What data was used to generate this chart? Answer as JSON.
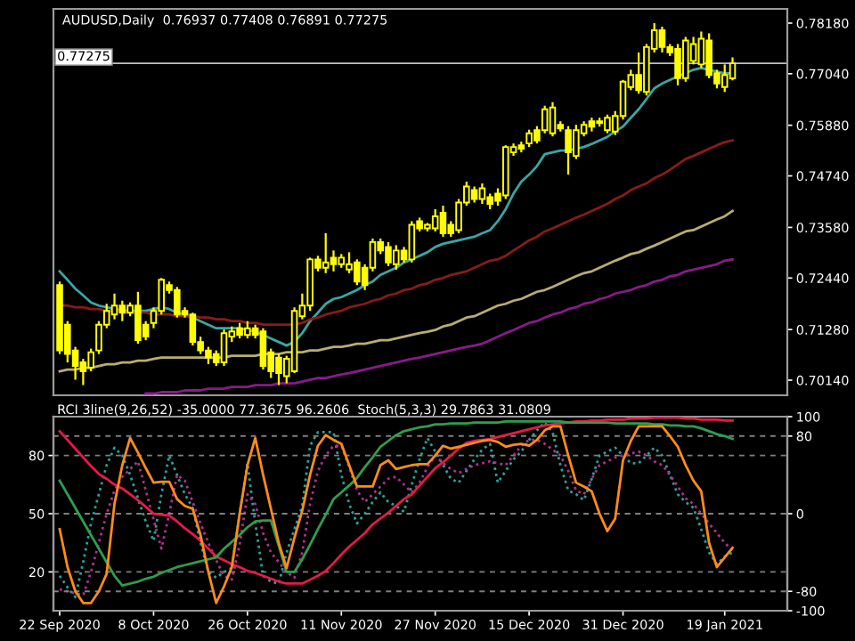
{
  "chart_data": [
    {
      "type": "candlestick",
      "title": "AUDUSD,Daily  0.76937 0.77408 0.76891 0.77275",
      "color": "#ffff00",
      "tick_labels": "y",
      "ohlc": [
        [
          0.7228,
          0.7236,
          0.7073,
          0.7081
        ],
        [
          0.7139,
          0.7147,
          0.7054,
          0.7073
        ],
        [
          0.7081,
          0.7089,
          0.7015,
          0.7046
        ],
        [
          0.7054,
          0.7062,
          0.7003,
          0.7034
        ],
        [
          0.7042,
          0.7085,
          0.7034,
          0.7077
        ],
        [
          0.7081,
          0.7147,
          0.7073,
          0.7139
        ],
        [
          0.7139,
          0.7186,
          0.7131,
          0.717
        ],
        [
          0.7162,
          0.7209,
          0.7151,
          0.7182
        ],
        [
          0.7182,
          0.7193,
          0.7147,
          0.7166
        ],
        [
          0.7166,
          0.7189,
          0.7158,
          0.7182
        ],
        [
          0.7182,
          0.7213,
          0.7096,
          0.7104
        ],
        [
          0.7139,
          0.7147,
          0.7104,
          0.7112
        ],
        [
          0.7143,
          0.7178,
          0.7131,
          0.717
        ],
        [
          0.717,
          0.7244,
          0.7162,
          0.724
        ],
        [
          0.7228,
          0.7236,
          0.7209,
          0.7217
        ],
        [
          0.7217,
          0.7224,
          0.7155,
          0.7162
        ],
        [
          0.717,
          0.7178,
          0.7155,
          0.7162
        ],
        [
          0.7162,
          0.7166,
          0.7092,
          0.71
        ],
        [
          0.71,
          0.7112,
          0.7073,
          0.7081
        ],
        [
          0.7081,
          0.7089,
          0.705,
          0.7065
        ],
        [
          0.7073,
          0.7081,
          0.7046,
          0.7054
        ],
        [
          0.7054,
          0.7128,
          0.7046,
          0.712
        ],
        [
          0.7112,
          0.7135,
          0.71,
          0.7124
        ],
        [
          0.7131,
          0.7143,
          0.7108,
          0.7116
        ],
        [
          0.7116,
          0.7147,
          0.7108,
          0.7131
        ],
        [
          0.7131,
          0.7139,
          0.7108,
          0.7116
        ],
        [
          0.7124,
          0.7131,
          0.7038,
          0.7046
        ],
        [
          0.7077,
          0.7085,
          0.7019,
          0.7034
        ],
        [
          0.7065,
          0.7073,
          0.7003,
          0.703
        ],
        [
          0.7023,
          0.7069,
          0.7007,
          0.7062
        ],
        [
          0.7034,
          0.7178,
          0.703,
          0.717
        ],
        [
          0.7158,
          0.7209,
          0.7151,
          0.7182
        ],
        [
          0.7182,
          0.729,
          0.717,
          0.7286
        ],
        [
          0.7286,
          0.7294,
          0.7259,
          0.7267
        ],
        [
          0.7267,
          0.7345,
          0.7255,
          0.7279
        ],
        [
          0.729,
          0.7306,
          0.7259,
          0.7275
        ],
        [
          0.7275,
          0.7298,
          0.7267,
          0.729
        ],
        [
          0.7263,
          0.7302,
          0.7255,
          0.7275
        ],
        [
          0.7279,
          0.7286,
          0.7228,
          0.7236
        ],
        [
          0.7267,
          0.7275,
          0.7217,
          0.7228
        ],
        [
          0.7267,
          0.7333,
          0.7259,
          0.7325
        ],
        [
          0.7325,
          0.7333,
          0.7298,
          0.7306
        ],
        [
          0.7314,
          0.7325,
          0.7271,
          0.7279
        ],
        [
          0.7275,
          0.7318,
          0.7263,
          0.7306
        ],
        [
          0.7306,
          0.7314,
          0.7279,
          0.7286
        ],
        [
          0.7286,
          0.7372,
          0.7279,
          0.7364
        ],
        [
          0.7372,
          0.738,
          0.7349,
          0.7356
        ],
        [
          0.7356,
          0.7368,
          0.7349,
          0.7364
        ],
        [
          0.7356,
          0.7399,
          0.7349,
          0.7383
        ],
        [
          0.7391,
          0.7407,
          0.7337,
          0.7345
        ],
        [
          0.7364,
          0.7372,
          0.7337,
          0.7345
        ],
        [
          0.7352,
          0.7422,
          0.7345,
          0.7414
        ],
        [
          0.7414,
          0.7461,
          0.7407,
          0.745
        ],
        [
          0.7442,
          0.745,
          0.7414,
          0.7422
        ],
        [
          0.7422,
          0.7457,
          0.7411,
          0.7446
        ],
        [
          0.7426,
          0.7434,
          0.7399,
          0.7411
        ],
        [
          0.7434,
          0.7446,
          0.7407,
          0.7418
        ],
        [
          0.743,
          0.7543,
          0.7422,
          0.7539
        ],
        [
          0.7527,
          0.7547,
          0.7519,
          0.7539
        ],
        [
          0.7543,
          0.7551,
          0.7527,
          0.7535
        ],
        [
          0.7547,
          0.7578,
          0.7539,
          0.757
        ],
        [
          0.7577,
          0.7586,
          0.7547,
          0.7554
        ],
        [
          0.7577,
          0.7632,
          0.757,
          0.7624
        ],
        [
          0.757,
          0.764,
          0.7563,
          0.7628
        ],
        [
          0.7589,
          0.7597,
          0.7574,
          0.7581
        ],
        [
          0.7577,
          0.7586,
          0.7477,
          0.7527
        ],
        [
          0.7519,
          0.7589,
          0.7512,
          0.7577
        ],
        [
          0.757,
          0.7597,
          0.7563,
          0.7589
        ],
        [
          0.7597,
          0.7605,
          0.7574,
          0.7585
        ],
        [
          0.7593,
          0.7605,
          0.7585,
          0.7597
        ],
        [
          0.7577,
          0.7612,
          0.757,
          0.7605
        ],
        [
          0.7574,
          0.762,
          0.7566,
          0.7609
        ],
        [
          0.7609,
          0.769,
          0.7601,
          0.7686
        ],
        [
          0.7674,
          0.7713,
          0.7667,
          0.7701
        ],
        [
          0.7701,
          0.7752,
          0.7659,
          0.7667
        ],
        [
          0.7663,
          0.7771,
          0.7655,
          0.7764
        ],
        [
          0.776,
          0.7818,
          0.7752,
          0.7802
        ],
        [
          0.7802,
          0.781,
          0.7752,
          0.7764
        ],
        [
          0.7764,
          0.7771,
          0.7744,
          0.7752
        ],
        [
          0.776,
          0.7771,
          0.7678,
          0.7694
        ],
        [
          0.7694,
          0.7787,
          0.7686,
          0.7779
        ],
        [
          0.7733,
          0.7787,
          0.7725,
          0.7771
        ],
        [
          0.7725,
          0.7799,
          0.7717,
          0.7783
        ],
        [
          0.7779,
          0.7795,
          0.7694,
          0.7701
        ],
        [
          0.7705,
          0.7713,
          0.7671,
          0.7682
        ],
        [
          0.7674,
          0.7725,
          0.7663,
          0.7701
        ],
        [
          0.76937,
          0.77408,
          0.76891,
          0.77275
        ]
      ],
      "series": [
        {
          "type": "line",
          "color": "#3aa6a6",
          "values": [
            0.7259,
            0.724,
            0.722,
            0.7205,
            0.7189,
            0.7182,
            0.7178,
            0.7174,
            0.717,
            0.717,
            0.717,
            0.717,
            0.7174,
            0.7178,
            0.7174,
            0.7166,
            0.7162,
            0.7155,
            0.7147,
            0.7139,
            0.7131,
            0.7131,
            0.7131,
            0.7131,
            0.7127,
            0.7123,
            0.7116,
            0.7108,
            0.71,
            0.7092,
            0.71,
            0.712,
            0.7147,
            0.7166,
            0.7186,
            0.7197,
            0.7201,
            0.7209,
            0.7217,
            0.7228,
            0.7236,
            0.7251,
            0.7259,
            0.7267,
            0.7279,
            0.7286,
            0.7294,
            0.7302,
            0.7314,
            0.7321,
            0.7325,
            0.7329,
            0.7333,
            0.7337,
            0.7345,
            0.7352,
            0.7372,
            0.7399,
            0.7434,
            0.7461,
            0.7477,
            0.7496,
            0.7523,
            0.7527,
            0.7531,
            0.7531,
            0.7535,
            0.7539,
            0.7546,
            0.7554,
            0.7562,
            0.7574,
            0.7585,
            0.7605,
            0.7624,
            0.7647,
            0.7671,
            0.7682,
            0.769,
            0.7698,
            0.7705,
            0.7713,
            0.7717,
            0.7713,
            0.7709,
            0.7705,
            0.7705
          ]
        },
        {
          "type": "line",
          "color": "#8b1a1a",
          "values": [
            0.7182,
            0.7182,
            0.7178,
            0.7178,
            0.7174,
            0.7174,
            0.717,
            0.717,
            0.717,
            0.7166,
            0.7166,
            0.7166,
            0.7162,
            0.7162,
            0.7162,
            0.7158,
            0.7158,
            0.7158,
            0.7155,
            0.7155,
            0.7151,
            0.7151,
            0.7147,
            0.7147,
            0.7143,
            0.7143,
            0.7139,
            0.7139,
            0.7139,
            0.7139,
            0.7139,
            0.7143,
            0.7151,
            0.7155,
            0.7162,
            0.7166,
            0.717,
            0.7178,
            0.7182,
            0.7186,
            0.7193,
            0.7197,
            0.7205,
            0.7209,
            0.7217,
            0.722,
            0.7228,
            0.7232,
            0.724,
            0.7244,
            0.7251,
            0.7255,
            0.7259,
            0.7267,
            0.7275,
            0.7283,
            0.7286,
            0.7294,
            0.7306,
            0.7317,
            0.7329,
            0.7337,
            0.7349,
            0.7356,
            0.7364,
            0.7372,
            0.738,
            0.7387,
            0.7395,
            0.7403,
            0.7411,
            0.7422,
            0.743,
            0.7442,
            0.745,
            0.7457,
            0.7469,
            0.7477,
            0.7488,
            0.75,
            0.7512,
            0.7519,
            0.7527,
            0.7535,
            0.7543,
            0.755,
            0.7554
          ]
        },
        {
          "type": "line",
          "color": "#b8ad74",
          "values": [
            0.7034,
            0.7038,
            0.7038,
            0.7042,
            0.7042,
            0.7046,
            0.705,
            0.705,
            0.7054,
            0.7054,
            0.7058,
            0.7058,
            0.7062,
            0.7065,
            0.7065,
            0.7065,
            0.7065,
            0.7065,
            0.7065,
            0.7065,
            0.7065,
            0.7065,
            0.7069,
            0.7069,
            0.7069,
            0.7069,
            0.7073,
            0.7073,
            0.7073,
            0.7077,
            0.7077,
            0.7077,
            0.7081,
            0.7081,
            0.7085,
            0.7089,
            0.7089,
            0.7092,
            0.7096,
            0.7096,
            0.71,
            0.7104,
            0.7104,
            0.7108,
            0.7112,
            0.7116,
            0.712,
            0.7123,
            0.7127,
            0.7135,
            0.7139,
            0.7147,
            0.7155,
            0.7158,
            0.7166,
            0.7174,
            0.7182,
            0.7186,
            0.7193,
            0.7197,
            0.7205,
            0.7213,
            0.7217,
            0.7224,
            0.7232,
            0.724,
            0.7248,
            0.7255,
            0.7259,
            0.7267,
            0.7275,
            0.7283,
            0.729,
            0.7298,
            0.7302,
            0.731,
            0.7317,
            0.7325,
            0.7333,
            0.7341,
            0.7349,
            0.7352,
            0.736,
            0.7368,
            0.7376,
            0.7383,
            0.7395
          ]
        },
        {
          "type": "line",
          "color": "#8a1a8a",
          "values": [
            null,
            null,
            null,
            null,
            null,
            null,
            null,
            null,
            null,
            null,
            null,
            0.6984,
            0.6984,
            0.6987,
            0.6987,
            0.6987,
            0.6991,
            0.6991,
            0.6991,
            0.6995,
            0.6995,
            0.6995,
            0.6999,
            0.6999,
            0.6999,
            0.7003,
            0.7003,
            0.7003,
            0.7007,
            0.7007,
            0.7007,
            0.7011,
            0.7015,
            0.7019,
            0.7019,
            0.7023,
            0.7027,
            0.703,
            0.7034,
            0.7038,
            0.7042,
            0.7046,
            0.705,
            0.7054,
            0.7058,
            0.7062,
            0.7065,
            0.7069,
            0.7073,
            0.7077,
            0.7081,
            0.7085,
            0.7089,
            0.7092,
            0.7096,
            0.7104,
            0.7112,
            0.712,
            0.7127,
            0.7135,
            0.7143,
            0.7147,
            0.7155,
            0.7162,
            0.7166,
            0.7174,
            0.7178,
            0.7186,
            0.7189,
            0.7197,
            0.7201,
            0.7209,
            0.7213,
            0.7217,
            0.7224,
            0.7228,
            0.7236,
            0.724,
            0.7248,
            0.7251,
            0.7259,
            0.7263,
            0.7267,
            0.7271,
            0.7275,
            0.7283,
            0.7286
          ]
        }
      ],
      "ylim": [
        0.698,
        0.785
      ],
      "yticks": [
        {
          "value": 0.7014,
          "label": "0.70140"
        },
        {
          "value": 0.7128,
          "label": "0.71280"
        },
        {
          "value": 0.7244,
          "label": "0.72440"
        },
        {
          "value": 0.7358,
          "label": "0.73580"
        },
        {
          "value": 0.7474,
          "label": "0.74740"
        },
        {
          "value": 0.7588,
          "label": "0.75880"
        },
        {
          "value": 0.7704,
          "label": "0.77040"
        },
        {
          "value": 0.7818,
          "label": "0.78180"
        }
      ],
      "ref_lines": [
        {
          "axis": "y",
          "value": 0.77275,
          "label": "0.77275",
          "color": "#c0c0c0"
        }
      ]
    },
    {
      "type": "line",
      "title": "RCI 3line(9,26,52) -35.0000 77.3675 96.2606  Stoch(5,3,3) 29.7863 31.0809",
      "categories": [
        "22 Sep 2020",
        null,
        null,
        null,
        null,
        null,
        null,
        null,
        null,
        null,
        null,
        null,
        "8 Oct 2020",
        null,
        null,
        null,
        null,
        null,
        null,
        null,
        null,
        null,
        null,
        null,
        "26 Oct 2020",
        null,
        null,
        null,
        null,
        null,
        null,
        null,
        null,
        null,
        null,
        null,
        "11 Nov 2020",
        null,
        null,
        null,
        null,
        null,
        null,
        null,
        null,
        null,
        null,
        null,
        "27 Nov 2020",
        null,
        null,
        null,
        null,
        null,
        null,
        null,
        null,
        null,
        null,
        null,
        "15 Dec 2020",
        null,
        null,
        null,
        null,
        null,
        null,
        null,
        null,
        null,
        null,
        null,
        "31 Dec 2020",
        null,
        null,
        null,
        null,
        null,
        null,
        null,
        null,
        null,
        null,
        null,
        null,
        "19 Jan 2021",
        null
      ],
      "series": [
        {
          "axis": "y2",
          "color": "#e8194a",
          "line_style": "solid",
          "values": [
            85,
            76,
            67,
            58,
            49,
            41,
            36,
            30,
            26,
            20,
            14,
            7,
            0,
            -1,
            -2,
            -8,
            -15,
            -21,
            -28,
            -36,
            -44,
            -48,
            -52,
            -55,
            -59,
            -61,
            -64,
            -67,
            -70,
            -72,
            -72,
            -72,
            -68,
            -64,
            -59,
            -51,
            -42,
            -34,
            -27,
            -20,
            -11,
            -5,
            1,
            8,
            15,
            20,
            29,
            38,
            47,
            53,
            60,
            67,
            73,
            75,
            76,
            77,
            79,
            81,
            83,
            85,
            87,
            89,
            91,
            92,
            93,
            94,
            95,
            95,
            96,
            96,
            97,
            97,
            97,
            98,
            98,
            98,
            99,
            99,
            99,
            99,
            98,
            98,
            97,
            97,
            97,
            96,
            96
          ]
        },
        {
          "axis": "y2",
          "color": "#2e9e4e",
          "line_style": "solid",
          "values": [
            34,
            20,
            6,
            -8,
            -22,
            -36,
            -50,
            -64,
            -74,
            -72,
            -70,
            -67,
            -65,
            -61,
            -58,
            -55,
            -53,
            -51,
            -49,
            -47,
            -45,
            -36,
            -29,
            -22,
            -14,
            -8,
            -7,
            -7,
            -33,
            -60,
            -60,
            -47,
            -32,
            -16,
            -1,
            15,
            22,
            29,
            37,
            48,
            58,
            69,
            75,
            81,
            85,
            87,
            89,
            90,
            92,
            92,
            93,
            93,
            93,
            94,
            94,
            94,
            94,
            95,
            95,
            95,
            95,
            95,
            95,
            95,
            95,
            94,
            94,
            94,
            94,
            94,
            94,
            93,
            93,
            93,
            93,
            93,
            92,
            92,
            91,
            91,
            90,
            90,
            88,
            85,
            82,
            80,
            77
          ]
        },
        {
          "axis": "y2",
          "color": "#ff8c1a",
          "line_style": "solid",
          "values": [
            -16,
            -55,
            -80,
            -92,
            -92,
            -80,
            -62,
            10,
            50,
            78,
            63,
            47,
            32,
            33,
            33,
            15,
            8,
            5,
            -22,
            -60,
            -92,
            -75,
            -55,
            0,
            50,
            78,
            40,
            5,
            -30,
            -56,
            -25,
            3,
            40,
            70,
            81,
            76,
            72,
            50,
            28,
            28,
            28,
            50,
            55,
            46,
            48,
            50,
            51,
            51,
            60,
            70,
            67,
            69,
            71,
            73,
            75,
            76,
            74,
            69,
            71,
            72,
            70,
            76,
            86,
            90,
            90,
            60,
            32,
            28,
            23,
            0,
            -18,
            -5,
            55,
            75,
            90,
            90,
            90,
            90,
            80,
            69,
            50,
            34,
            23,
            -30,
            -55,
            -45,
            -35
          ]
        },
        {
          "axis": "y",
          "color": "#2aa198",
          "line_style": "dotted",
          "values": [
            18,
            12,
            7,
            25,
            45,
            60,
            75,
            84,
            80,
            70,
            58,
            46,
            36,
            60,
            80,
            70,
            60,
            53,
            35,
            20,
            17,
            20,
            22,
            50,
            76,
            45,
            18,
            15,
            14,
            30,
            42,
            54,
            85,
            92,
            92,
            92,
            70,
            55,
            45,
            50,
            56,
            61,
            56,
            54,
            51,
            65,
            78,
            89,
            82,
            75,
            68,
            66,
            72,
            78,
            83,
            86,
            66,
            72,
            78,
            82,
            88,
            93,
            97,
            92,
            75,
            62,
            60,
            57,
            68,
            80,
            82,
            84,
            80,
            76,
            76,
            80,
            84,
            80,
            70,
            60,
            56,
            53,
            42,
            30,
            24,
            28,
            30
          ]
        },
        {
          "axis": "y",
          "color": "#b0308f",
          "line_style": "dotted",
          "values": [
            11,
            10,
            9,
            8,
            20,
            35,
            50,
            62,
            69,
            73,
            77,
            62,
            47,
            32,
            50,
            70,
            67,
            56,
            45,
            35,
            26,
            18,
            16,
            34,
            60,
            55,
            40,
            30,
            25,
            20,
            17,
            30,
            55,
            72,
            80,
            85,
            85,
            74,
            62,
            56,
            60,
            64,
            68,
            69,
            65,
            61,
            66,
            74,
            80,
            76,
            73,
            71,
            73,
            75,
            76,
            77,
            76,
            75,
            80,
            85,
            88,
            88,
            86,
            83,
            80,
            72,
            62,
            60,
            68,
            75,
            77,
            79,
            80,
            81,
            82,
            80,
            77,
            75,
            70,
            64,
            58,
            55,
            50,
            45,
            40,
            35,
            31
          ]
        }
      ],
      "ylim": [
        0,
        100
      ],
      "yticks": [
        20,
        50,
        80
      ],
      "y2lim": [
        -100,
        100
      ],
      "y2ticks": [
        -100,
        -80,
        0,
        80,
        100
      ],
      "grid": "y"
    }
  ]
}
